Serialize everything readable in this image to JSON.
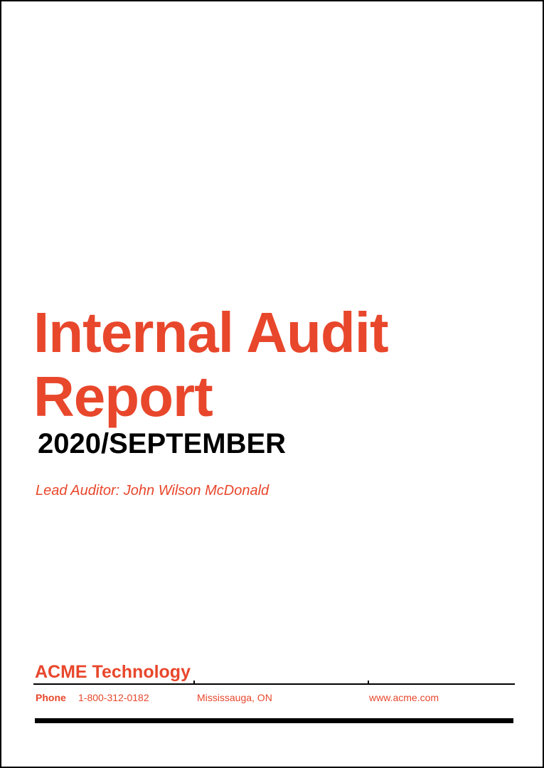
{
  "document": {
    "title": "Internal Audit Report",
    "subtitle": "2020/SEPTEMBER",
    "lead_auditor": "Lead Auditor: John Wilson McDonald",
    "company": "ACME Technology",
    "footer": {
      "phone_label": "Phone",
      "phone_number": "1-800-312-0182",
      "location": "Mississauga, ON",
      "website": "www.acme.com"
    }
  },
  "colors": {
    "accent": "#E8472C",
    "subtitle_text": "#000000",
    "rule": "#000000"
  }
}
